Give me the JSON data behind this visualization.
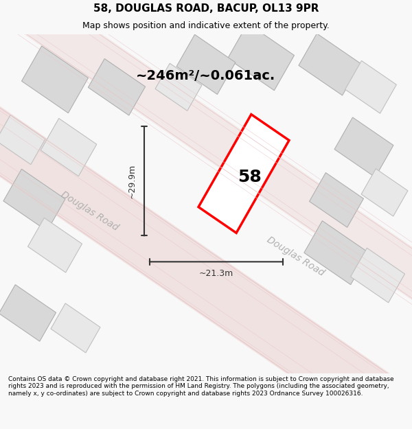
{
  "title": "58, DOUGLAS ROAD, BACUP, OL13 9PR",
  "subtitle": "Map shows position and indicative extent of the property.",
  "area_label": "~246m²/~0.061ac.",
  "property_number": "58",
  "dim_height": "~29.9m",
  "dim_width": "~21.3m",
  "road_label_left": "Douglas Road",
  "road_label_right": "Douglas Road",
  "footer": "Contains OS data © Crown copyright and database right 2021. This information is subject to Crown copyright and database rights 2023 and is reproduced with the permission of HM Land Registry. The polygons (including the associated geometry, namely x, y co-ordinates) are subject to Crown copyright and database rights 2023 Ordnance Survey 100026316.",
  "bg_color": "#f8f8f8",
  "map_bg": "#ffffff",
  "building_fill": "#e0e0e0",
  "road_fill": "#f0f0f0",
  "property_color": "#ff0000",
  "road_stripe_color": "#e8c8c8",
  "dim_color": "#333333",
  "road_text_color": "#b0b0b0"
}
